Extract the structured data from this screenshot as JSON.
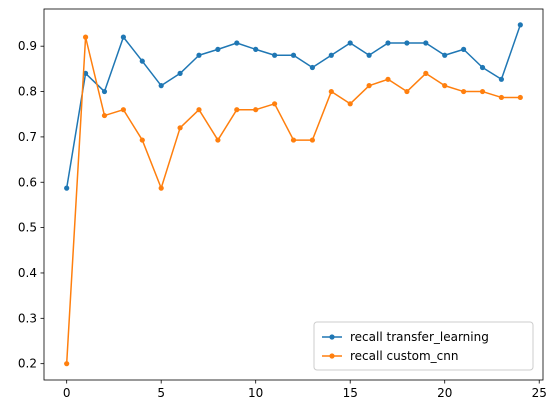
{
  "chart_data": {
    "type": "line",
    "title": "",
    "xlabel": "",
    "ylabel": "",
    "x": [
      0,
      1,
      2,
      3,
      4,
      5,
      6,
      7,
      8,
      9,
      10,
      11,
      12,
      13,
      14,
      15,
      16,
      17,
      18,
      19,
      20,
      21,
      22,
      23,
      24
    ],
    "xlim": [
      -1.2,
      25.2
    ],
    "ylim": [
      0.164,
      0.982
    ],
    "xticks": [
      0,
      5,
      10,
      15,
      20,
      25
    ],
    "yticks": [
      0.2,
      0.3,
      0.4,
      0.5,
      0.6,
      0.7,
      0.8,
      0.9
    ],
    "xtick_labels": [
      "0",
      "5",
      "10",
      "15",
      "20",
      "25"
    ],
    "ytick_labels": [
      "0.2",
      "0.3",
      "0.4",
      "0.5",
      "0.6",
      "0.7",
      "0.8",
      "0.9"
    ],
    "grid": false,
    "legend_position": "lower-right",
    "series": [
      {
        "name": "recall transfer_learning",
        "color": "#1f77b4",
        "marker": "dot",
        "values": [
          0.587,
          0.84,
          0.8,
          0.92,
          0.867,
          0.813,
          0.84,
          0.88,
          0.893,
          0.907,
          0.893,
          0.88,
          0.88,
          0.853,
          0.88,
          0.907,
          0.88,
          0.907,
          0.907,
          0.907,
          0.88,
          0.893,
          0.853,
          0.827,
          0.947
        ]
      },
      {
        "name": "recall custom_cnn",
        "color": "#ff7f0e",
        "marker": "dot",
        "values": [
          0.2,
          0.92,
          0.747,
          0.76,
          0.693,
          0.587,
          0.72,
          0.76,
          0.693,
          0.76,
          0.76,
          0.773,
          0.693,
          0.693,
          0.8,
          0.773,
          0.813,
          0.827,
          0.8,
          0.84,
          0.813,
          0.8,
          0.8,
          0.787,
          0.787
        ]
      }
    ]
  }
}
